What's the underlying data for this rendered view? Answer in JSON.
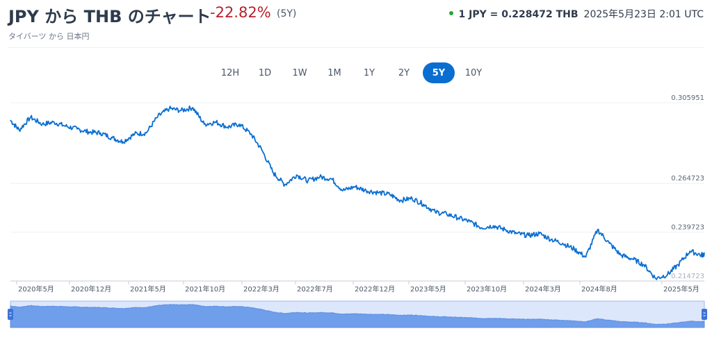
{
  "header": {
    "title": "JPY から THB のチャート",
    "change": "-22.82%",
    "period": "(5Y)",
    "rate": "1 JPY = 0.228472 THB",
    "timestamp": "2025年5月23日 2:01 UTC",
    "status_color": "#26a63a"
  },
  "subtitle": "タイバーツ から 日本円",
  "ranges": [
    {
      "label": "12H",
      "active": false
    },
    {
      "label": "1D",
      "active": false
    },
    {
      "label": "1W",
      "active": false
    },
    {
      "label": "1M",
      "active": false
    },
    {
      "label": "1Y",
      "active": false
    },
    {
      "label": "2Y",
      "active": false
    },
    {
      "label": "5Y",
      "active": true
    },
    {
      "label": "10Y",
      "active": false
    }
  ],
  "colors": {
    "line": "#0a6ed1",
    "negative": "#b81f2b",
    "navigator_fill": "#6f9eea",
    "navigator_window": "#dde7fb"
  },
  "chart_data": {
    "type": "line",
    "title": "",
    "xlabel": "",
    "ylabel": "",
    "x_tick_labels": [
      "2020年5月",
      "2020年12月",
      "2021年5月",
      "2021年10月",
      "2022年3月",
      "2022年7月",
      "2022年12月",
      "2023年5月",
      "2023年10月",
      "2024年3月",
      "2024年8月",
      "2025年5月"
    ],
    "y_tick_labels": [
      "0.305951",
      "0.264723",
      "0.239723",
      "0.214723"
    ],
    "ylim": [
      0.2147,
      0.306
    ],
    "grid": "horizontal",
    "legend": "none",
    "series": [
      {
        "x": [
          "2020-05-23",
          "2020-06-15",
          "2020-07-15",
          "2020-08-15",
          "2020-09-15",
          "2020-10-15",
          "2020-11-15",
          "2020-12-15",
          "2021-01-15",
          "2021-02-15",
          "2021-03-15",
          "2021-04-15",
          "2021-05-15",
          "2021-06-15",
          "2021-07-15",
          "2021-08-15",
          "2021-09-15",
          "2021-10-15",
          "2021-11-15",
          "2021-12-15",
          "2022-01-15",
          "2022-02-15",
          "2022-03-15",
          "2022-04-15",
          "2022-05-15",
          "2022-06-15",
          "2022-07-15",
          "2022-08-15",
          "2022-09-15",
          "2022-10-15",
          "2022-11-15",
          "2022-12-15",
          "2023-01-15",
          "2023-02-15",
          "2023-03-15",
          "2023-04-15",
          "2023-05-15",
          "2023-06-15",
          "2023-07-15",
          "2023-08-15",
          "2023-09-15",
          "2023-10-15",
          "2023-11-15",
          "2023-12-15",
          "2024-01-15",
          "2024-02-15",
          "2024-03-15",
          "2024-04-15",
          "2024-05-15",
          "2024-06-15",
          "2024-07-15",
          "2024-08-15",
          "2024-09-15",
          "2024-10-15",
          "2024-11-15",
          "2024-12-15",
          "2025-01-15",
          "2025-02-15",
          "2025-03-15",
          "2025-04-15",
          "2025-05-15",
          "2025-05-23"
        ],
        "y": [
          0.297,
          0.292,
          0.2985,
          0.295,
          0.296,
          0.294,
          0.2925,
          0.291,
          0.2905,
          0.288,
          0.286,
          0.29,
          0.2905,
          0.299,
          0.303,
          0.302,
          0.3035,
          0.295,
          0.296,
          0.2935,
          0.295,
          0.29,
          0.282,
          0.27,
          0.264,
          0.269,
          0.266,
          0.268,
          0.267,
          0.261,
          0.263,
          0.261,
          0.26,
          0.259,
          0.256,
          0.257,
          0.254,
          0.25,
          0.249,
          0.247,
          0.245,
          0.242,
          0.243,
          0.241,
          0.239,
          0.238,
          0.239,
          0.236,
          0.234,
          0.231,
          0.227,
          0.241,
          0.234,
          0.228,
          0.226,
          0.223,
          0.216,
          0.218,
          0.223,
          0.23,
          0.228,
          0.2285
        ]
      }
    ]
  }
}
